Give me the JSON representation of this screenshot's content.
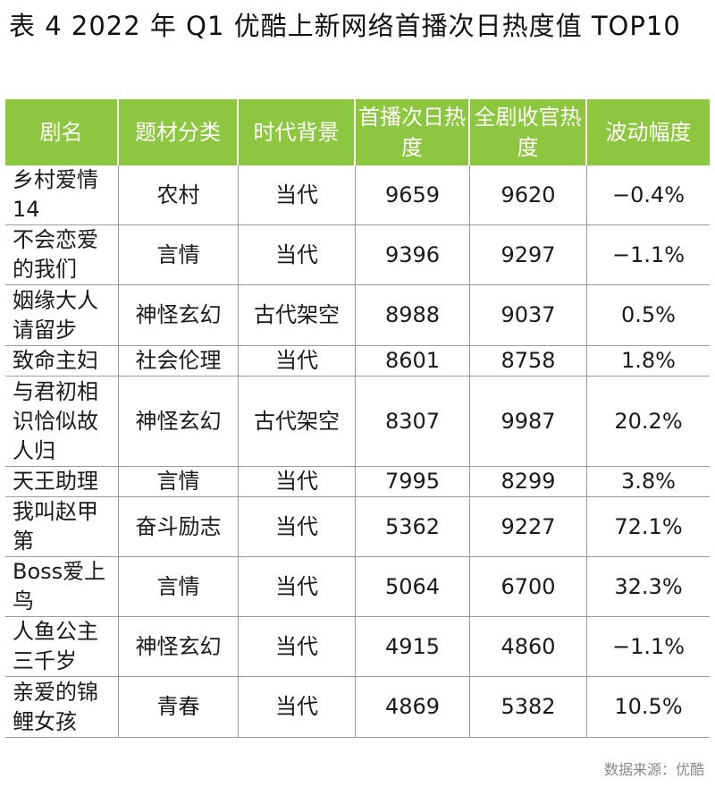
{
  "title": "表 4 2022 年 Q1 优酷上新网络首播次日热度值 TOP10",
  "table": {
    "headers": [
      "剧名",
      "题材分类",
      "时代背景",
      "首播次日热度",
      "全剧收官热度",
      "波动幅度"
    ],
    "rows": [
      [
        "乡村爱情14",
        "农村",
        "当代",
        "9659",
        "9620",
        "−0.4%"
      ],
      [
        "不会恋爱的我们",
        "言情",
        "当代",
        "9396",
        "9297",
        "−1.1%"
      ],
      [
        "姻缘大人请留步",
        "神怪玄幻",
        "古代架空",
        "8988",
        "9037",
        "0.5%"
      ],
      [
        "致命主妇",
        "社会伦理",
        "当代",
        "8601",
        "8758",
        "1.8%"
      ],
      [
        "与君初相识恰似故人归",
        "神怪玄幻",
        "古代架空",
        "8307",
        "9987",
        "20.2%"
      ],
      [
        "天王助理",
        "言情",
        "当代",
        "7995",
        "8299",
        "3.8%"
      ],
      [
        "我叫赵甲第",
        "奋斗励志",
        "当代",
        "5362",
        "9227",
        "72.1%"
      ],
      [
        "Boss爱上鸟",
        "言情",
        "当代",
        "5064",
        "6700",
        "32.3%"
      ],
      [
        "人鱼公主三千岁",
        "神怪玄幻",
        "当代",
        "4915",
        "4860",
        "−1.1%"
      ],
      [
        "亲爱的锦鲤女孩",
        "青春",
        "当代",
        "4869",
        "5382",
        "10.5%"
      ]
    ]
  },
  "source": "数据来源：优酷",
  "colors": {
    "header_bg": "#8dc63f",
    "header_text": "#ffffff",
    "grid_line": "#9a9a9a"
  }
}
